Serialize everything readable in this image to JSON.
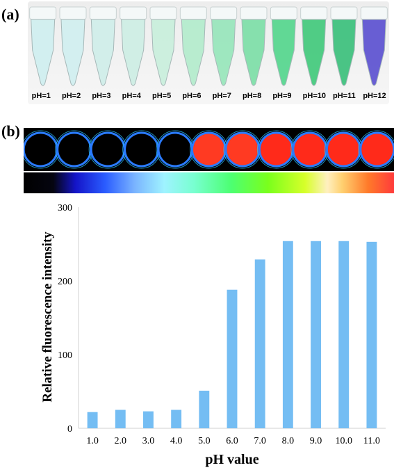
{
  "panel_a": {
    "label": "(a)",
    "tubes": [
      {
        "label": "pH=1",
        "color": "#cfeff0"
      },
      {
        "label": "pH=2",
        "color": "#d0eff0"
      },
      {
        "label": "pH=3",
        "color": "#cfeeea"
      },
      {
        "label": "pH=4",
        "color": "#cdeee4"
      },
      {
        "label": "pH=5",
        "color": "#c8efdc"
      },
      {
        "label": "pH=6",
        "color": "#b2eccc"
      },
      {
        "label": "pH=7",
        "color": "#96e6ba"
      },
      {
        "label": "pH=8",
        "color": "#7bdfa6"
      },
      {
        "label": "pH=9",
        "color": "#52d68c"
      },
      {
        "label": "pH=10",
        "color": "#3fc97a"
      },
      {
        "label": "pH=11",
        "color": "#38c07a"
      },
      {
        "label": "pH=12",
        "color": "#5a4fd0"
      }
    ]
  },
  "panel_b": {
    "label": "(b)",
    "wells": [
      {
        "color": "#000000"
      },
      {
        "color": "#000000"
      },
      {
        "color": "#000000"
      },
      {
        "color": "#000000"
      },
      {
        "color": "#000000"
      },
      {
        "color": "#ff3a22"
      },
      {
        "color": "#ff3a22"
      },
      {
        "color": "#ff2a1a"
      },
      {
        "color": "#ff2a1a"
      },
      {
        "color": "#ff2a1a"
      },
      {
        "color": "#ff2a1a"
      }
    ]
  },
  "chart_data": {
    "type": "bar",
    "categories": [
      "1.0",
      "2.0",
      "3.0",
      "4.0",
      "5.0",
      "6.0",
      "7.0",
      "8.0",
      "9.0",
      "10.0",
      "11.0"
    ],
    "values": [
      22,
      25,
      23,
      25,
      51,
      188,
      229,
      254,
      254,
      254,
      253
    ],
    "xlabel": "pH value",
    "ylabel": "Relative fluorescence intensity",
    "ylim": [
      0,
      300
    ],
    "yticks": [
      "0",
      "100",
      "200",
      "300"
    ],
    "grid": false,
    "bar_color": "#74bdf3"
  }
}
